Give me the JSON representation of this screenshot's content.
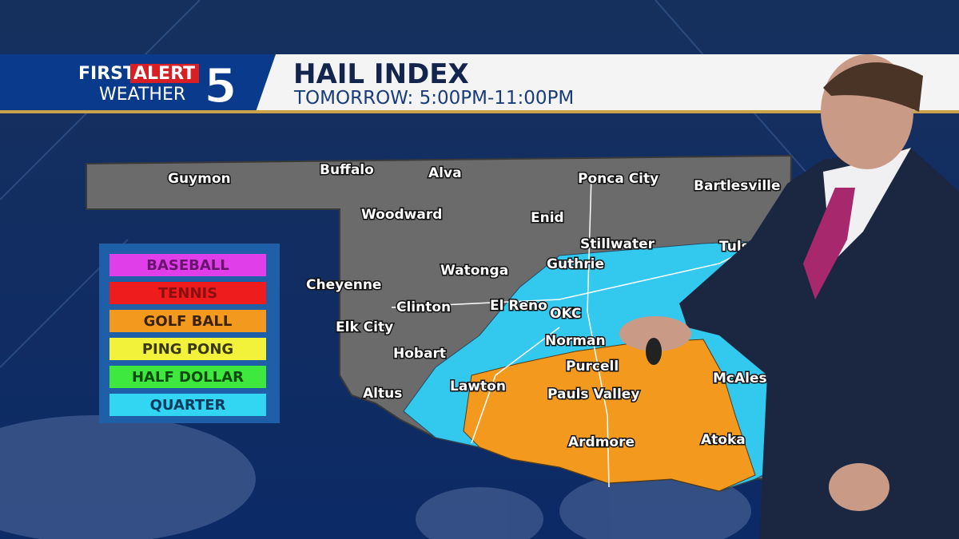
{
  "header": {
    "logo": {
      "first": "FIRST",
      "alert": "ALERT",
      "weather": "WEATHER",
      "channel": "5"
    },
    "title": "HAIL INDEX",
    "subtitle": "TOMORROW: 5:00PM-11:00PM"
  },
  "legend": [
    {
      "label": "BASEBALL",
      "color": "#e03ee8"
    },
    {
      "label": "TENNIS",
      "color": "#ee1c1c"
    },
    {
      "label": "GOLF BALL",
      "color": "#f39a1e"
    },
    {
      "label": "PING PONG",
      "color": "#f2f23a"
    },
    {
      "label": "HALF DOLLAR",
      "color": "#3ee83e"
    },
    {
      "label": "QUARTER",
      "color": "#33d6f2"
    }
  ],
  "cities": [
    "Guymon",
    "Buffalo",
    "Alva",
    "Ponca City",
    "Bartlesville",
    "Woodward",
    "Enid",
    "Stillwater",
    "Tulsa",
    "Watonga",
    "Guthrie",
    "Cheyenne",
    "Clinton",
    "El Reno",
    "OKC",
    "Elk City",
    "Norman",
    "Hobart",
    "Purcell",
    "Lawton",
    "Altus",
    "Pauls Valley",
    "McAles",
    "Ardmore",
    "Atoka"
  ]
}
